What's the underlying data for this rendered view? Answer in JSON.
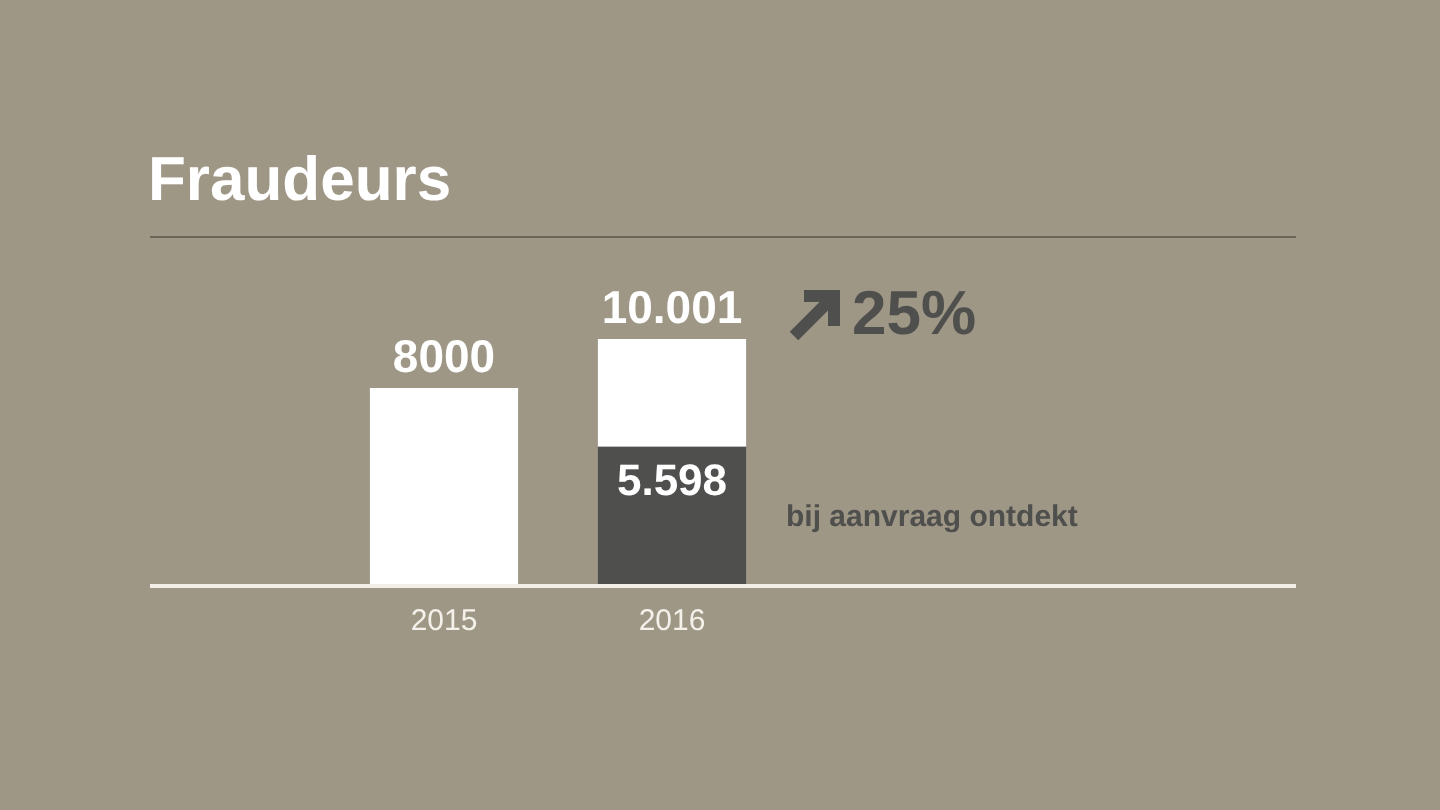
{
  "chart_data": {
    "type": "bar",
    "title": "Fraudeurs",
    "categories": [
      "2015",
      "2016"
    ],
    "stacked": true,
    "series": [
      {
        "color": "#4f4f4d",
        "values": [
          null,
          5598
        ],
        "value_labels": [
          null,
          "5.598"
        ]
      },
      {
        "color": "#ffffff",
        "values": [
          8000,
          4403
        ],
        "value_labels": [
          "8000",
          null
        ]
      }
    ],
    "totals": [
      null,
      "10.001"
    ],
    "annotations": [
      "25%",
      "bij aanvraag ontdekt"
    ],
    "grid": false,
    "legend": false
  }
}
